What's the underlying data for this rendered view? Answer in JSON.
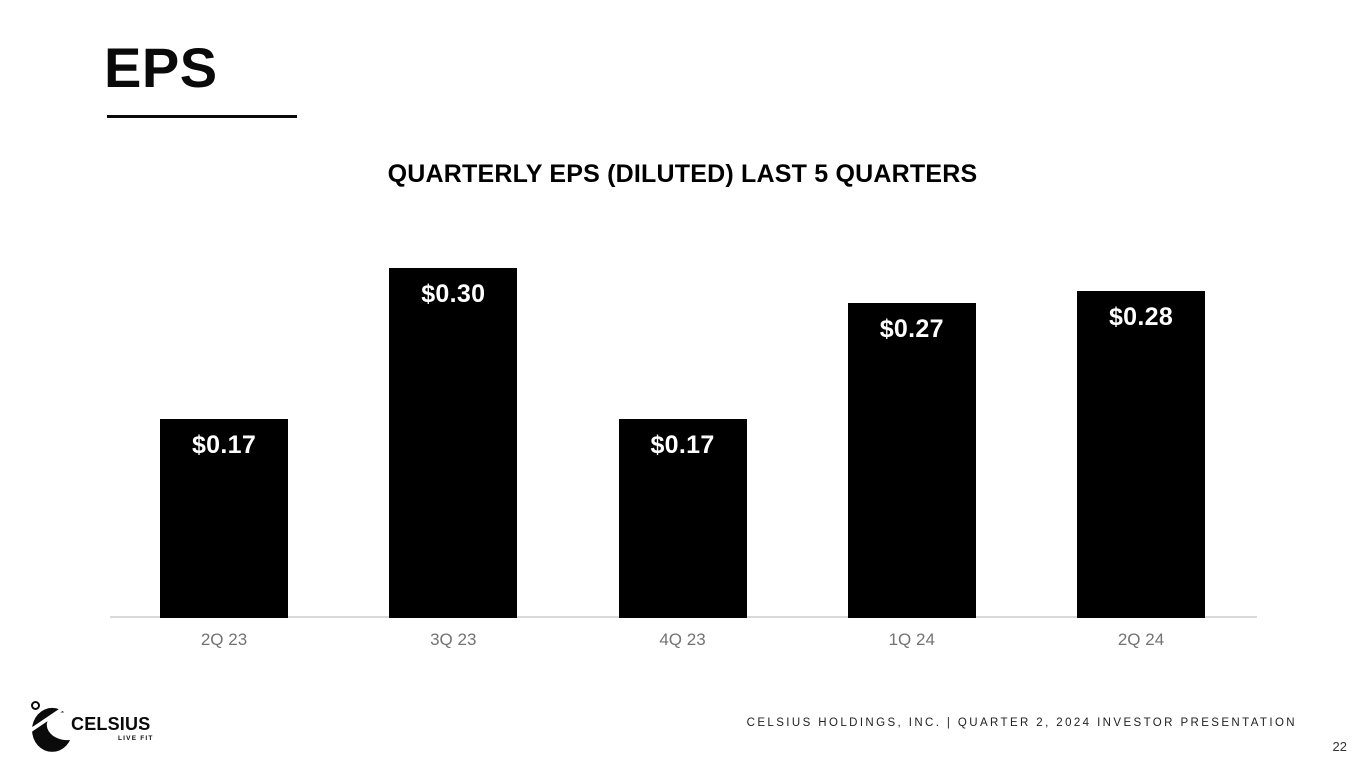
{
  "slide": {
    "title": "EPS",
    "footer_text": "CELSIUS HOLDINGS, INC. | QUARTER 2, 2024 INVESTOR PRESENTATION",
    "page_number": "22",
    "logo": {
      "brand": "CELSIUS",
      "tagline": "LIVE FIT"
    }
  },
  "chart_data": {
    "type": "bar",
    "title": "QUARTERLY EPS (DILUTED) LAST 5 QUARTERS",
    "categories": [
      "2Q 23",
      "3Q 23",
      "4Q 23",
      "1Q 24",
      "2Q 24"
    ],
    "values": [
      0.17,
      0.3,
      0.17,
      0.27,
      0.28
    ],
    "labels": [
      "$0.17",
      "$0.30",
      "$0.17",
      "$0.27",
      "$0.28"
    ],
    "xlabel": "",
    "ylabel": "",
    "ylim": [
      0,
      0.315
    ],
    "grid": false,
    "legend": false,
    "bar_color": "#000000",
    "value_label_color": "#ffffff",
    "axis_label_color": "#737373",
    "baseline_color": "#d9d9d9"
  }
}
